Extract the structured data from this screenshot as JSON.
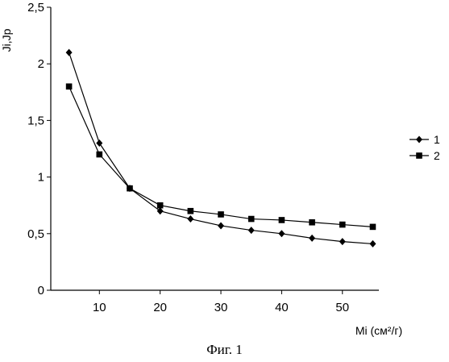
{
  "chart_data": {
    "type": "line",
    "title": "",
    "ylabel": "Ji,Jp",
    "xlabel": "Mi (см²/г)",
    "xlim": [
      2,
      56
    ],
    "ylim": [
      0,
      2.5
    ],
    "x_ticks": [
      10,
      20,
      30,
      40,
      50
    ],
    "x_tick_labels": [
      "10",
      "20",
      "30",
      "40",
      "50"
    ],
    "y_ticks": [
      0,
      0.5,
      1,
      1.5,
      2,
      2.5
    ],
    "y_tick_labels": [
      "0",
      "0,5",
      "1",
      "1,5",
      "2",
      "2,5"
    ],
    "grid": false,
    "legend_position": "right",
    "x": [
      5,
      10,
      15,
      20,
      25,
      30,
      35,
      40,
      45,
      50,
      55
    ],
    "series": [
      {
        "name": "1",
        "marker": "diamond",
        "color": "#000000",
        "values": [
          2.1,
          1.3,
          0.9,
          0.7,
          0.63,
          0.57,
          0.53,
          0.5,
          0.46,
          0.43,
          0.41
        ]
      },
      {
        "name": "2",
        "marker": "square",
        "color": "#000000",
        "values": [
          1.8,
          1.2,
          0.9,
          0.75,
          0.7,
          0.67,
          0.63,
          0.62,
          0.6,
          0.58,
          0.56
        ]
      }
    ]
  },
  "caption": "Фиг. 1"
}
